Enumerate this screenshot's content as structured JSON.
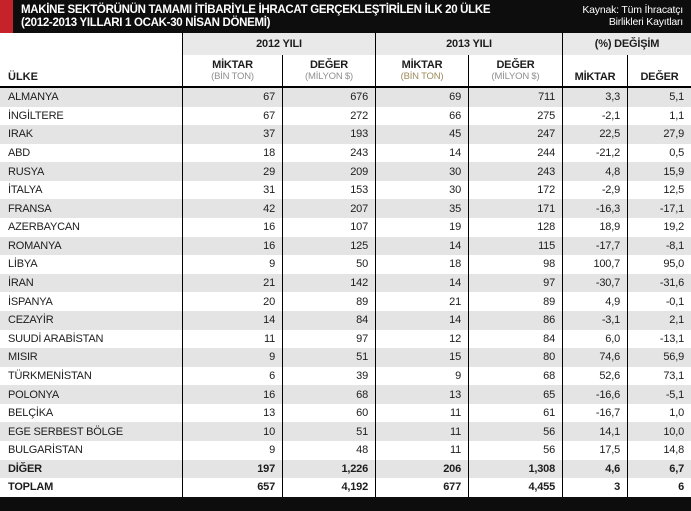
{
  "title": {
    "line1": "MAKİNE SEKTÖRÜNÜN TAMAMI İTİBARİYLE İHRACAT GERÇEKLEŞTİRİLEN İLK 20 ÜLKE",
    "line2": "(2012-2013 YILLARI 1 OCAK-30 NİSAN DÖNEMİ)"
  },
  "source": {
    "line1": "Kaynak: Tüm İhracatçı",
    "line2": "Birlikleri Kayıtları"
  },
  "colors": {
    "accent_red": "#c5222a",
    "title_bar_black": "#0d0d0d",
    "group_header_bg": "#e9e9e9",
    "row_alt_gray": "#e4e4e4",
    "unit_gray": "#8f8f8f",
    "unit_olive": "#9c8c5a"
  },
  "chart_data": {
    "type": "table",
    "title": "MAKİNE SEKTÖRÜNÜN TAMAMI İTİBARİYLE İHRACAT GERÇEKLEŞTİRİLEN İLK 20 ÜLKE (2012-2013 YILLARI 1 OCAK-30 NİSAN DÖNEMİ)",
    "source": "Kaynak: Tüm İhracatçı Birlikleri Kayıtları",
    "group_headers": [
      "2012 YILI",
      "2013 YILI",
      "(%) DEĞİŞİM"
    ],
    "country_header": "ÜLKE",
    "sub_headers": {
      "y2012_miktar_label": "MİKTAR",
      "y2012_miktar_unit": "(BİN TON)",
      "y2012_deger_label": "DEĞER",
      "y2012_deger_unit": "(MİLYON $)",
      "y2013_miktar_label": "MİKTAR",
      "y2013_miktar_unit": "(BİN TON)",
      "y2013_deger_label": "DEĞER",
      "y2013_deger_unit": "(MİLYON $)",
      "pct_miktar_label": "MİKTAR",
      "pct_deger_label": "DEĞER"
    },
    "columns": [
      "ÜLKE",
      "2012 MİKTAR (BİN TON)",
      "2012 DEĞER (MİLYON $)",
      "2013 MİKTAR (BİN TON)",
      "2013 DEĞER (MİLYON $)",
      "(%) DEĞİŞİM MİKTAR",
      "(%) DEĞİŞİM DEĞER"
    ],
    "rows": [
      {
        "country": "ALMANYA",
        "values": [
          "67",
          "676",
          "69",
          "711",
          "3,3",
          "5,1"
        ],
        "bold": false
      },
      {
        "country": "İNGİLTERE",
        "values": [
          "67",
          "272",
          "66",
          "275",
          "-2,1",
          "1,1"
        ],
        "bold": false
      },
      {
        "country": "IRAK",
        "values": [
          "37",
          "193",
          "45",
          "247",
          "22,5",
          "27,9"
        ],
        "bold": false
      },
      {
        "country": "ABD",
        "values": [
          "18",
          "243",
          "14",
          "244",
          "-21,2",
          "0,5"
        ],
        "bold": false
      },
      {
        "country": "RUSYA",
        "values": [
          "29",
          "209",
          "30",
          "243",
          "4,8",
          "15,9"
        ],
        "bold": false
      },
      {
        "country": "İTALYA",
        "values": [
          "31",
          "153",
          "30",
          "172",
          "-2,9",
          "12,5"
        ],
        "bold": false
      },
      {
        "country": "FRANSA",
        "values": [
          "42",
          "207",
          "35",
          "171",
          "-16,3",
          "-17,1"
        ],
        "bold": false
      },
      {
        "country": "AZERBAYCAN",
        "values": [
          "16",
          "107",
          "19",
          "128",
          "18,9",
          "19,2"
        ],
        "bold": false
      },
      {
        "country": "ROMANYA",
        "values": [
          "16",
          "125",
          "14",
          "115",
          "-17,7",
          "-8,1"
        ],
        "bold": false
      },
      {
        "country": "LİBYA",
        "values": [
          "9",
          "50",
          "18",
          "98",
          "100,7",
          "95,0"
        ],
        "bold": false
      },
      {
        "country": "İRAN",
        "values": [
          "21",
          "142",
          "14",
          "97",
          "-30,7",
          "-31,6"
        ],
        "bold": false
      },
      {
        "country": "İSPANYA",
        "values": [
          "20",
          "89",
          "21",
          "89",
          "4,9",
          "-0,1"
        ],
        "bold": false
      },
      {
        "country": "CEZAYİR",
        "values": [
          "14",
          "84",
          "14",
          "86",
          "-3,1",
          "2,1"
        ],
        "bold": false
      },
      {
        "country": "SUUDİ ARABİSTAN",
        "values": [
          "11",
          "97",
          "12",
          "84",
          "6,0",
          "-13,1"
        ],
        "bold": false
      },
      {
        "country": "MISIR",
        "values": [
          "9",
          "51",
          "15",
          "80",
          "74,6",
          "56,9"
        ],
        "bold": false
      },
      {
        "country": "TÜRKMENİSTAN",
        "values": [
          "6",
          "39",
          "9",
          "68",
          "52,6",
          "73,1"
        ],
        "bold": false
      },
      {
        "country": "POLONYA",
        "values": [
          "16",
          "68",
          "13",
          "65",
          "-16,6",
          "-5,1"
        ],
        "bold": false
      },
      {
        "country": "BELÇİKA",
        "values": [
          "13",
          "60",
          "11",
          "61",
          "-16,7",
          "1,0"
        ],
        "bold": false
      },
      {
        "country": "EGE SERBEST BÖLGE",
        "values": [
          "10",
          "51",
          "11",
          "56",
          "14,1",
          "10,0"
        ],
        "bold": false
      },
      {
        "country": "BULGARİSTAN",
        "values": [
          "9",
          "48",
          "11",
          "56",
          "17,5",
          "14,8"
        ],
        "bold": false
      },
      {
        "country": "DİĞER",
        "values": [
          "197",
          "1,226",
          "206",
          "1,308",
          "4,6",
          "6,7"
        ],
        "bold": true
      },
      {
        "country": "TOPLAM",
        "values": [
          "657",
          "4,192",
          "677",
          "4,455",
          "3",
          "6"
        ],
        "bold": true
      }
    ]
  }
}
